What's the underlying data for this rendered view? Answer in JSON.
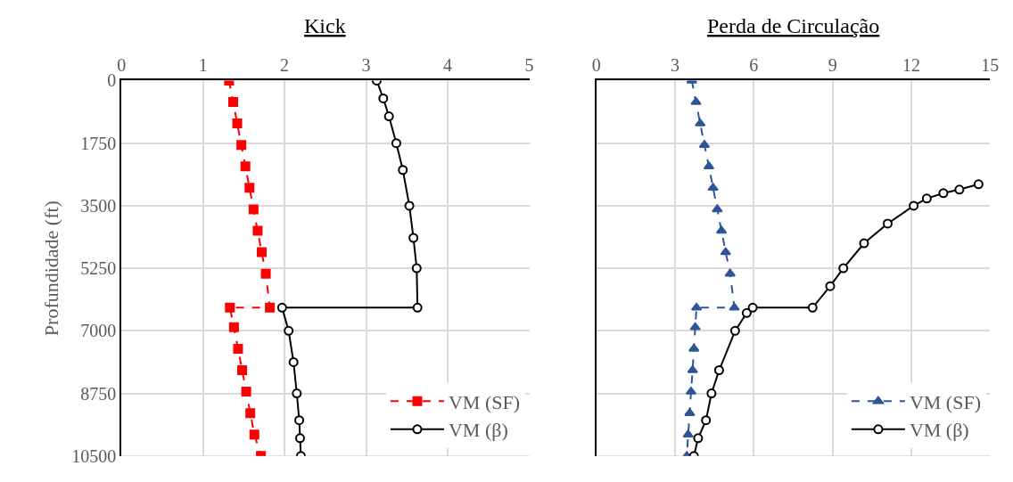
{
  "chart_data": [
    {
      "type": "line",
      "title": "Kick",
      "ylabel": "Profundidade (ft)",
      "xlim": [
        0,
        5
      ],
      "xticks": [
        0,
        1,
        2,
        3,
        4,
        5
      ],
      "ylim": [
        10500,
        0
      ],
      "yticks": [
        0,
        1750,
        3500,
        5250,
        7000,
        8750,
        10500
      ],
      "grid": true,
      "legend": "bottom right",
      "series": [
        {
          "name": "VM (SF)",
          "color": "#ff0000",
          "marker": "square",
          "line_style": "dashed",
          "x": [
            1.32,
            1.37,
            1.42,
            1.47,
            1.52,
            1.57,
            1.62,
            1.67,
            1.72,
            1.77,
            1.82,
            1.33,
            1.38,
            1.43,
            1.48,
            1.53,
            1.58,
            1.63,
            1.71
          ],
          "values": [
            0,
            600,
            1200,
            1800,
            2400,
            3000,
            3600,
            4200,
            4800,
            5400,
            6350,
            6350,
            6900,
            7500,
            8100,
            8700,
            9300,
            9900,
            10500
          ]
        },
        {
          "name": "VM (β)",
          "color": "#000000",
          "marker": "circle",
          "line_style": "solid",
          "x": [
            3.13,
            3.21,
            3.28,
            3.37,
            3.45,
            3.53,
            3.58,
            3.62,
            3.63,
            1.97,
            2.05,
            2.11,
            2.15,
            2.18,
            2.19,
            2.2
          ],
          "values": [
            0,
            500,
            1000,
            1750,
            2500,
            3500,
            4400,
            5250,
            6350,
            6350,
            7000,
            7875,
            8750,
            9500,
            10000,
            10500
          ]
        }
      ]
    },
    {
      "type": "line",
      "title": "Perda de Circulação",
      "xlim": [
        0,
        15
      ],
      "xticks": [
        0,
        3,
        6,
        9,
        12,
        15
      ],
      "ylim": [
        10500,
        0
      ],
      "yticks": [
        0,
        1750,
        3500,
        5250,
        7000,
        8750,
        10500
      ],
      "grid": true,
      "legend": "bottom right",
      "tick_labels": "x",
      "series": [
        {
          "name": "VM (SF)",
          "color": "#2f5597",
          "marker": "triangle",
          "line_style": "dashed",
          "x": [
            3.64,
            3.8,
            3.96,
            4.12,
            4.29,
            4.45,
            4.61,
            4.77,
            4.93,
            5.1,
            5.26,
            3.82,
            3.77,
            3.72,
            3.67,
            3.61,
            3.56,
            3.5,
            3.45
          ],
          "values": [
            0,
            600,
            1200,
            1800,
            2400,
            3000,
            3600,
            4200,
            4800,
            5400,
            6350,
            6350,
            6900,
            7500,
            8100,
            8700,
            9300,
            9900,
            10500
          ]
        },
        {
          "name": "VM (β)",
          "color": "#000000",
          "marker": "circle",
          "line_style": "solid",
          "x": [
            14.56,
            13.83,
            13.22,
            12.59,
            12.09,
            11.1,
            10.2,
            9.41,
            8.91,
            8.24,
            5.96,
            5.73,
            5.29,
            4.68,
            4.39,
            4.18,
            3.88,
            3.72
          ],
          "values": [
            2900,
            3050,
            3150,
            3300,
            3500,
            4000,
            4550,
            5250,
            5750,
            6350,
            6350,
            6500,
            7000,
            8100,
            8750,
            9500,
            10000,
            10500
          ]
        }
      ]
    }
  ]
}
